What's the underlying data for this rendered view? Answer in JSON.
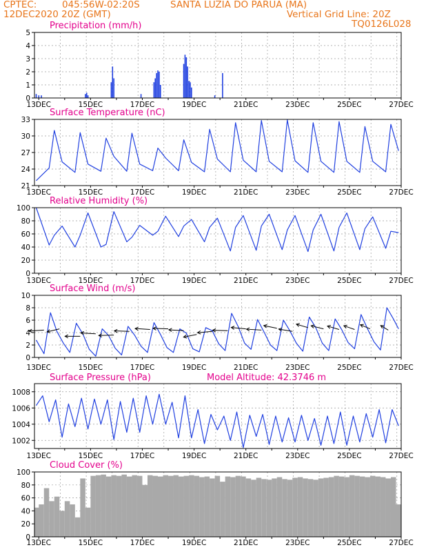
{
  "header": {
    "source": "CPTEC:",
    "coords": "045:56W-02:20S",
    "station": "SANTA LUZIA DO PARUA (MA)",
    "run": "12DEC2020 20Z (GMT)",
    "vgrid": "Vertical Grid Line: 20Z",
    "code": "TQ0126L028"
  },
  "colors": {
    "header": "#e8751a",
    "title": "#e3008c",
    "line": "#1f3fe0",
    "bar": "#1f3fe0",
    "cloud": "#a9a9a9",
    "grid": "#9a9a9a"
  },
  "x_axis": {
    "start": "12DEC2020 20Z",
    "end": "27DEC2020 00Z",
    "labels": [
      "13DEC",
      "15DEC",
      "17DEC",
      "19DEC",
      "21DEC",
      "23DEC",
      "25DEC",
      "27DEC"
    ]
  },
  "chart_data": [
    {
      "id": "precip",
      "type": "bar",
      "title": "Precipitation (mm/h)",
      "ylim": [
        0,
        5
      ],
      "yticks": [
        0,
        1,
        2,
        3,
        4,
        5
      ],
      "grid": true,
      "x_unit": "day of December 2020",
      "x": [
        12.9,
        13.0,
        13.1,
        14.8,
        14.85,
        14.9,
        15.8,
        15.85,
        15.9,
        16.95,
        17.45,
        17.5,
        17.55,
        17.6,
        17.65,
        17.7,
        18.6,
        18.65,
        18.7,
        18.75,
        18.8,
        18.85,
        18.9,
        19.8,
        20.1
      ],
      "values": [
        0.3,
        0.2,
        0.2,
        0.3,
        0.4,
        0.2,
        1.2,
        2.4,
        1.5,
        0.3,
        1.2,
        1.5,
        1.9,
        2.1,
        2.0,
        1.0,
        2.6,
        3.3,
        3.1,
        2.4,
        1.3,
        1.2,
        0.8,
        0.2,
        1.9
      ]
    },
    {
      "id": "temp",
      "type": "line",
      "title": "Surface Temperature (nC)",
      "ylim": [
        21,
        33
      ],
      "yticks": [
        21,
        24,
        27,
        30,
        33
      ],
      "grid": true,
      "x_unit": "day of December 2020",
      "x": [
        12.9,
        13.4,
        13.6,
        13.9,
        14.4,
        14.6,
        14.9,
        15.4,
        15.6,
        15.9,
        16.4,
        16.6,
        16.9,
        17.4,
        17.6,
        17.9,
        18.4,
        18.6,
        18.9,
        19.4,
        19.6,
        19.9,
        20.4,
        20.6,
        20.9,
        21.4,
        21.6,
        21.9,
        22.4,
        22.6,
        22.9,
        23.4,
        23.6,
        23.9,
        24.4,
        24.6,
        24.9,
        25.4,
        25.6,
        25.9,
        26.4,
        26.6,
        26.9
      ],
      "values": [
        21.9,
        24.2,
        31.0,
        25.3,
        23.4,
        30.6,
        24.9,
        23.6,
        29.6,
        26.3,
        23.6,
        30.5,
        24.9,
        23.7,
        27.8,
        26.0,
        23.7,
        29.3,
        25.2,
        23.5,
        31.2,
        25.8,
        23.5,
        32.4,
        25.6,
        23.5,
        32.8,
        25.4,
        23.5,
        32.9,
        25.5,
        23.4,
        32.4,
        25.4,
        23.4,
        32.6,
        25.4,
        23.4,
        31.7,
        25.4,
        23.5,
        32.1,
        27.3
      ]
    },
    {
      "id": "rh",
      "type": "line",
      "title": "Relative Humidity (%)",
      "ylim": [
        0,
        100
      ],
      "yticks": [
        0,
        20,
        40,
        60,
        80,
        100
      ],
      "grid": true,
      "x_unit": "day of December 2020",
      "x": [
        12.9,
        13.4,
        13.6,
        13.9,
        14.4,
        14.6,
        14.9,
        15.4,
        15.6,
        15.9,
        16.4,
        16.6,
        16.9,
        17.4,
        17.6,
        17.9,
        18.4,
        18.6,
        18.9,
        19.4,
        19.6,
        19.9,
        20.4,
        20.6,
        20.9,
        21.4,
        21.6,
        21.9,
        22.4,
        22.6,
        22.9,
        23.4,
        23.6,
        23.9,
        24.4,
        24.6,
        24.9,
        25.4,
        25.6,
        25.9,
        26.4,
        26.6,
        26.9
      ],
      "values": [
        100,
        43,
        58,
        72,
        40,
        58,
        92,
        40,
        44,
        94,
        48,
        55,
        73,
        58,
        64,
        87,
        56,
        72,
        82,
        48,
        70,
        84,
        34,
        70,
        88,
        35,
        72,
        90,
        36,
        66,
        88,
        33,
        66,
        90,
        34,
        70,
        92,
        36,
        68,
        86,
        38,
        64,
        62
      ]
    },
    {
      "id": "wind",
      "type": "line",
      "title": "Surface Wind (m/s)",
      "ylim": [
        0,
        10
      ],
      "yticks": [
        0,
        2,
        4,
        6,
        8,
        10
      ],
      "grid": true,
      "x_unit": "day of December 2020",
      "x": [
        12.9,
        13.2,
        13.45,
        13.7,
        13.95,
        14.2,
        14.45,
        14.7,
        14.95,
        15.2,
        15.45,
        15.7,
        15.95,
        16.2,
        16.45,
        16.7,
        16.95,
        17.2,
        17.45,
        17.7,
        17.95,
        18.2,
        18.45,
        18.7,
        18.95,
        19.2,
        19.45,
        19.7,
        19.95,
        20.2,
        20.45,
        20.7,
        20.95,
        21.2,
        21.45,
        21.7,
        21.95,
        22.2,
        22.45,
        22.7,
        22.95,
        23.2,
        23.45,
        23.7,
        23.95,
        24.2,
        24.45,
        24.7,
        24.95,
        25.2,
        25.45,
        25.7,
        25.95,
        26.2,
        26.45,
        26.7,
        26.9
      ],
      "values": [
        2.8,
        0.6,
        7.2,
        4.2,
        2.3,
        0.8,
        5.5,
        3.8,
        1.3,
        0.2,
        4.6,
        3.5,
        1.5,
        0.4,
        5.0,
        3.6,
        1.8,
        0.8,
        5.6,
        3.7,
        1.6,
        0.8,
        4.6,
        3.9,
        1.4,
        0.9,
        4.8,
        4.3,
        2.2,
        1.1,
        7.1,
        5.0,
        2.3,
        1.3,
        6.1,
        4.1,
        2.0,
        1.1,
        6.0,
        4.3,
        2.3,
        1.0,
        6.5,
        4.8,
        2.3,
        1.1,
        6.2,
        4.5,
        2.4,
        1.4,
        6.9,
        4.6,
        2.5,
        1.2,
        8.0,
        6.2,
        4.6
      ],
      "vectors": {
        "x": [
          13.2,
          13.8,
          14.6,
          15.2,
          15.9,
          16.5,
          17.3,
          18.0,
          18.6,
          19.1,
          19.7,
          20.3,
          21.0,
          21.6,
          22.2,
          22.8,
          23.4,
          24.0,
          24.6,
          25.2,
          25.8,
          26.5
        ],
        "speed": [
          4.4,
          4.6,
          3.4,
          3.8,
          3.6,
          4.2,
          4.5,
          4.6,
          4.3,
          3.7,
          4.2,
          4.3,
          4.6,
          4.4,
          4.7,
          4.2,
          4.8,
          4.6,
          4.5,
          4.5,
          4.6,
          4.4
        ],
        "dir_deg": [
          80,
          55,
          90,
          100,
          85,
          95,
          100,
          95,
          100,
          60,
          75,
          95,
          105,
          100,
          120,
          115,
          130,
          125,
          130,
          135,
          140,
          150
        ]
      }
    },
    {
      "id": "pres",
      "type": "line",
      "title": "Surface Pressure (hPa)",
      "annotation": "Model Altitude: 42.3746 m",
      "ylim": [
        1001,
        1009
      ],
      "yticks": [
        1002,
        1004,
        1006,
        1008
      ],
      "grid": true,
      "x_unit": "day of December 2020",
      "x": [
        12.9,
        13.15,
        13.4,
        13.65,
        13.9,
        14.15,
        14.4,
        14.65,
        14.9,
        15.15,
        15.4,
        15.65,
        15.9,
        16.15,
        16.4,
        16.65,
        16.9,
        17.15,
        17.4,
        17.65,
        17.9,
        18.15,
        18.4,
        18.65,
        18.9,
        19.15,
        19.4,
        19.65,
        19.9,
        20.15,
        20.4,
        20.65,
        20.9,
        21.15,
        21.4,
        21.65,
        21.9,
        22.15,
        22.4,
        22.65,
        22.9,
        23.15,
        23.4,
        23.65,
        23.9,
        24.15,
        24.4,
        24.65,
        24.9,
        25.15,
        25.4,
        25.65,
        25.9,
        26.15,
        26.4,
        26.65,
        26.9
      ],
      "values": [
        1006.3,
        1007.5,
        1004.3,
        1007.0,
        1002.4,
        1006.5,
        1003.7,
        1007.2,
        1003.4,
        1007.1,
        1004.0,
        1007.0,
        1002.1,
        1006.8,
        1003.0,
        1007.2,
        1003.0,
        1007.5,
        1004.0,
        1007.7,
        1004.0,
        1006.7,
        1002.3,
        1007.5,
        1002.3,
        1005.8,
        1001.6,
        1005.2,
        1003.3,
        1005.0,
        1002.0,
        1005.5,
        1001.1,
        1005.1,
        1002.5,
        1005.2,
        1001.5,
        1005.0,
        1001.8,
        1004.8,
        1001.8,
        1005.1,
        1002.0,
        1004.7,
        1001.4,
        1005.0,
        1001.6,
        1005.5,
        1001.4,
        1005.0,
        1001.8,
        1005.3,
        1002.4,
        1005.8,
        1001.7,
        1005.8,
        1003.8
      ]
    },
    {
      "id": "cloud",
      "type": "bar",
      "title": "Cloud Cover (%)",
      "ylim": [
        0,
        100
      ],
      "yticks": [
        0,
        20,
        40,
        60,
        80,
        100
      ],
      "grid": true,
      "x_unit": "day of December 2020",
      "x": [
        12.9,
        13.1,
        13.3,
        13.5,
        13.7,
        13.9,
        14.1,
        14.3,
        14.5,
        14.7,
        14.9,
        15.1,
        15.3,
        15.5,
        15.7,
        15.9,
        16.1,
        16.3,
        16.5,
        16.7,
        16.9,
        17.1,
        17.3,
        17.5,
        17.7,
        17.9,
        18.1,
        18.3,
        18.5,
        18.7,
        18.9,
        19.1,
        19.3,
        19.5,
        19.7,
        19.9,
        20.1,
        20.3,
        20.5,
        20.7,
        20.9,
        21.1,
        21.3,
        21.5,
        21.7,
        21.9,
        22.1,
        22.3,
        22.5,
        22.7,
        22.9,
        23.1,
        23.3,
        23.5,
        23.7,
        23.9,
        24.1,
        24.3,
        24.5,
        24.7,
        24.9,
        25.1,
        25.3,
        25.5,
        25.7,
        25.9,
        26.1,
        26.3,
        26.5,
        26.7,
        26.9
      ],
      "values": [
        45,
        50,
        75,
        55,
        62,
        40,
        55,
        50,
        30,
        90,
        45,
        94,
        95,
        96,
        93,
        95,
        94,
        96,
        93,
        95,
        94,
        80,
        95,
        94,
        93,
        95,
        94,
        95,
        93,
        94,
        95,
        94,
        92,
        93,
        90,
        94,
        85,
        93,
        92,
        94,
        93,
        90,
        88,
        91,
        89,
        88,
        90,
        92,
        89,
        88,
        91,
        92,
        90,
        89,
        88,
        90,
        91,
        92,
        94,
        93,
        92,
        95,
        94,
        93,
        92,
        94,
        93,
        92,
        90,
        92,
        50
      ]
    }
  ]
}
